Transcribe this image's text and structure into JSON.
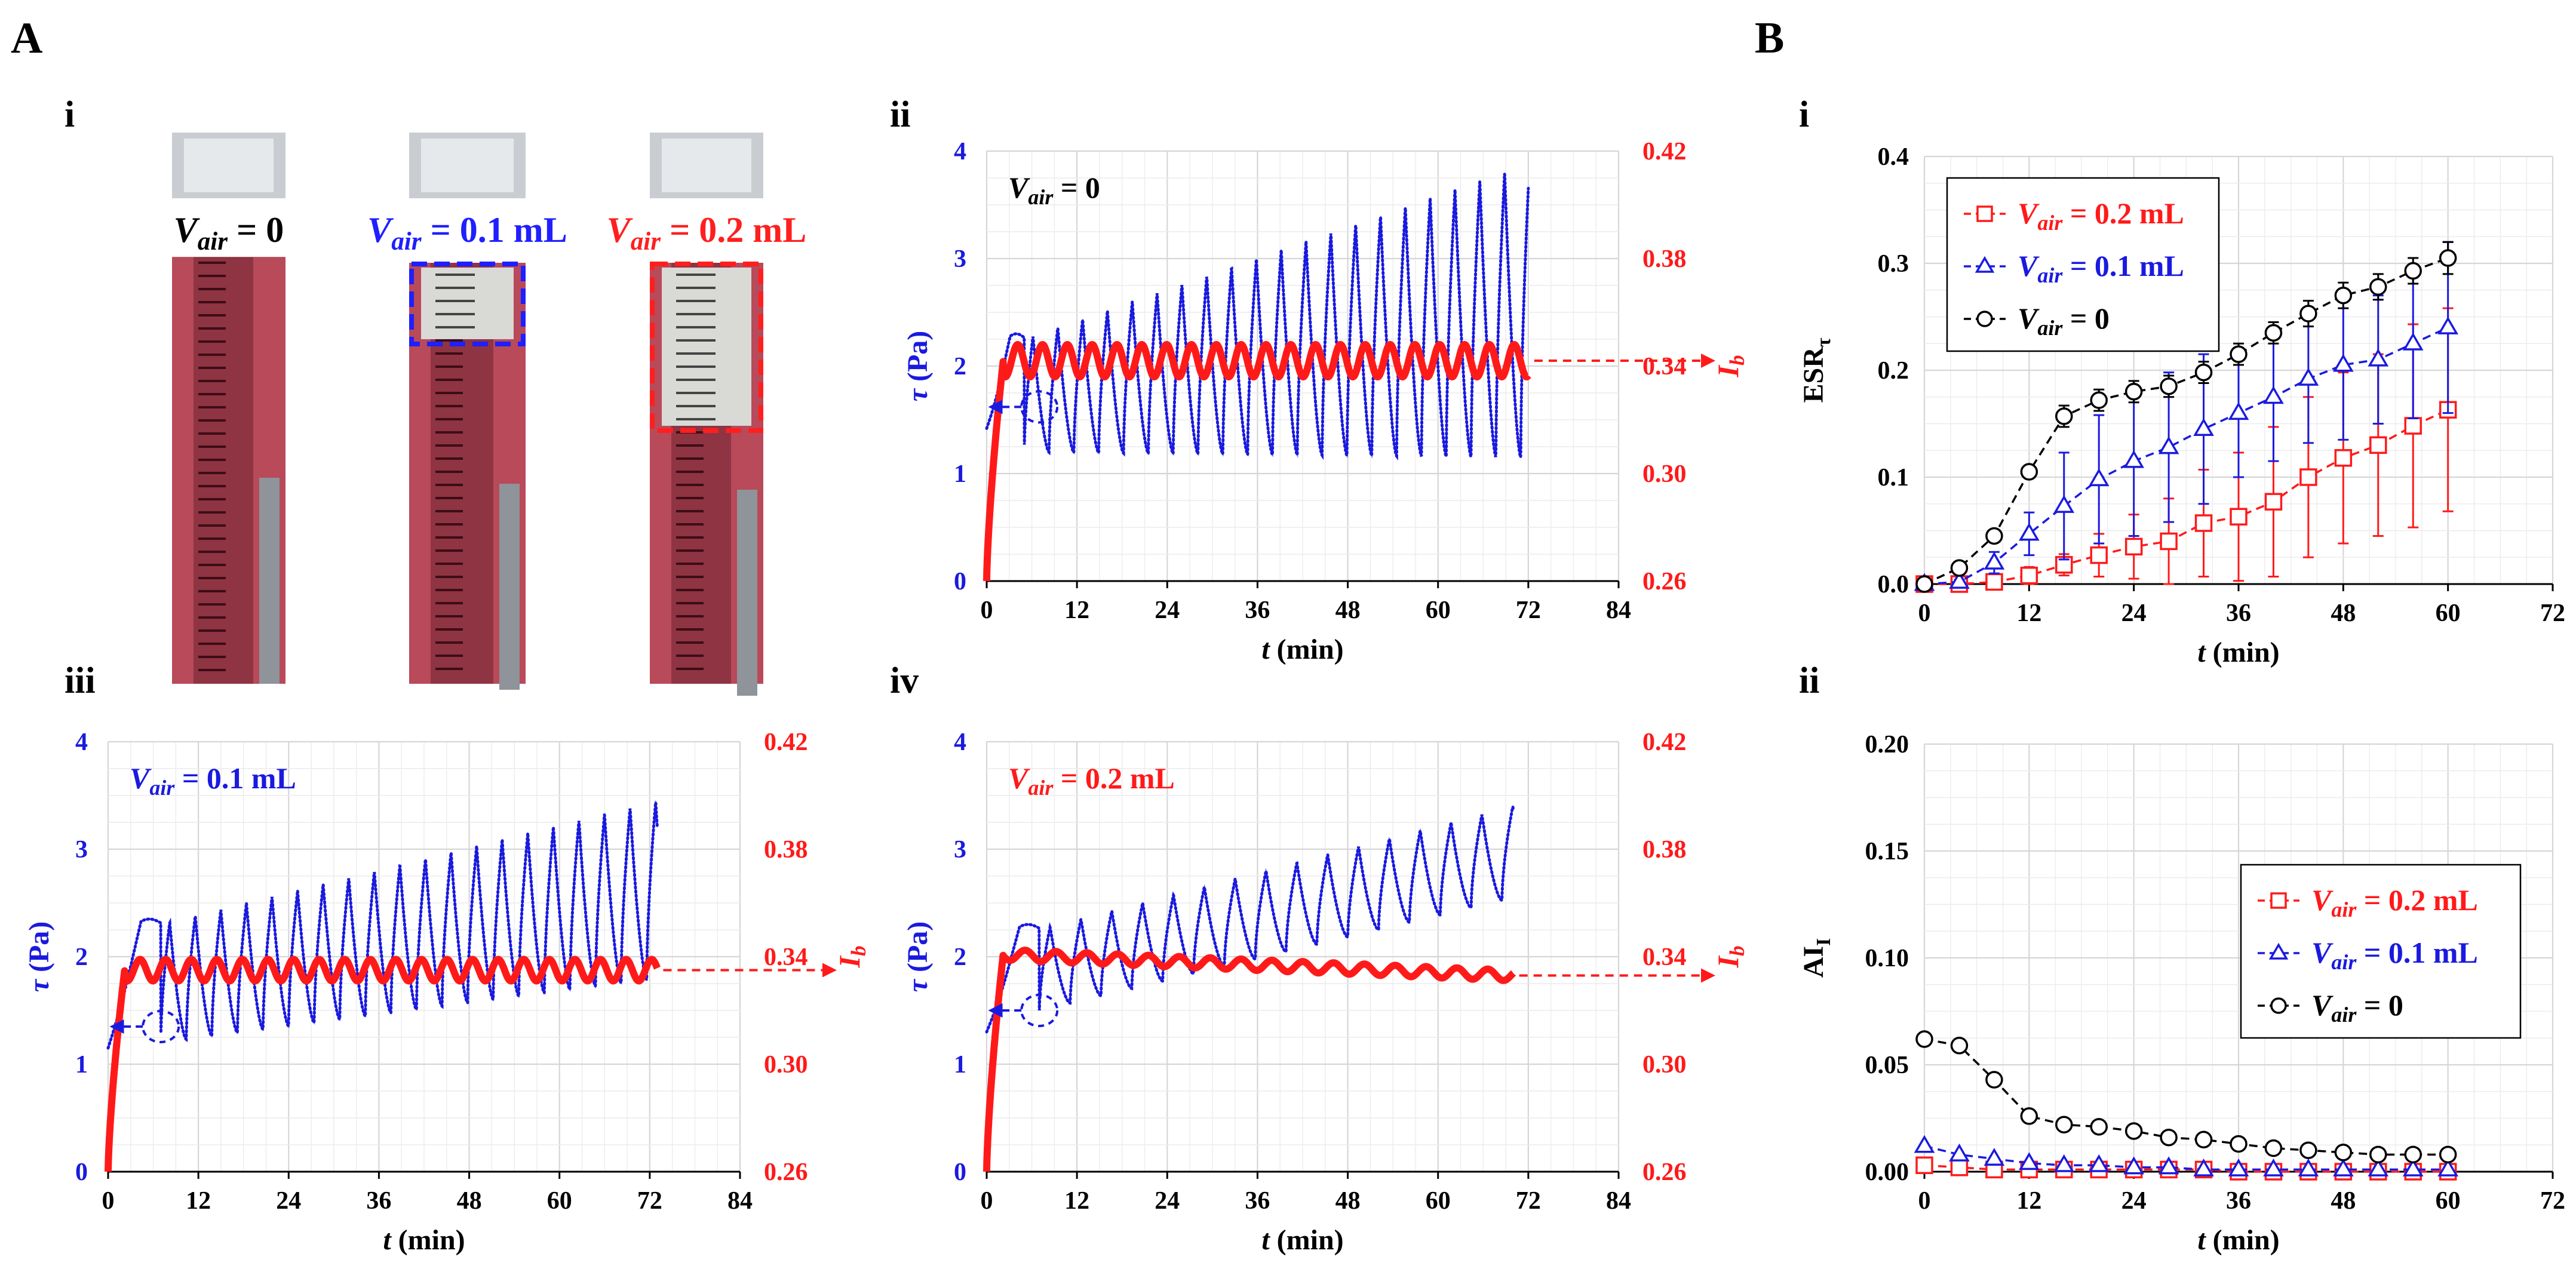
{
  "panel_labels": {
    "A": "A",
    "B": "B",
    "Ai": "i",
    "Aii": "ii",
    "Aiii": "iii",
    "Aiv": "iv",
    "Bi": "i",
    "Bii": "ii"
  },
  "photo": {
    "labels": [
      {
        "v": "V",
        "sub": "air",
        "rest": " = 0",
        "color": "#000000"
      },
      {
        "v": "V",
        "sub": "air",
        "rest": " = 0.1 mL",
        "color": "#1f1fff"
      },
      {
        "v": "V",
        "sub": "air",
        "rest": " = 0.2 mL",
        "color": "#ff1f1f"
      }
    ],
    "colors": {
      "blood": "#b84a5a",
      "dark": "#6e2230",
      "glass": "#c9cdd1",
      "metal": "#8e9499",
      "blue_box": "#1f1fff",
      "red_box": "#ff1f1f"
    }
  },
  "colors": {
    "tau": "#1a1adf",
    "ib": "#ff1a1a",
    "black": "#000000",
    "grid": "#d6d6d6",
    "gridminor": "#ececec"
  },
  "chart_data": [
    {
      "id": "Aii",
      "type": "line",
      "annotation": {
        "v": "V",
        "sub": "air",
        "rest": " = 0",
        "color": "#000000"
      },
      "xlabel": "t (min)",
      "ylabel_left": "τ (Pa)",
      "ylabel_right": "I_b",
      "xlim": [
        0,
        84
      ],
      "xticks": [
        "0",
        "12",
        "24",
        "36",
        "48",
        "60",
        "72",
        "84"
      ],
      "ylim_left": [
        0,
        4
      ],
      "yticks_left": [
        "0",
        "1",
        "2",
        "3",
        "4"
      ],
      "ylim_right": [
        0.26,
        0.42
      ],
      "yticks_right": [
        "0.26",
        "0.30",
        "0.34",
        "0.38",
        "0.42"
      ],
      "series": [
        {
          "name": "τ",
          "axis": "left",
          "color": "#1a1adf",
          "start": 1.42,
          "base_start": 1.2,
          "base_end": 1.15,
          "peak_start": 2.25,
          "peak_end": 3.88,
          "period": 3.3,
          "t_start": 5,
          "t_end": 72
        },
        {
          "name": "I_b",
          "axis": "right",
          "color": "#ff1a1a",
          "level": 0.342,
          "ripple": 0.006,
          "period": 3.3,
          "t_end": 72
        }
      ]
    },
    {
      "id": "Aiii",
      "type": "line",
      "annotation": {
        "v": "V",
        "sub": "air",
        "rest": " = 0.1 mL",
        "color": "#1a1adf"
      },
      "xlabel": "t (min)",
      "ylabel_left": "τ (Pa)",
      "ylabel_right": "I_b",
      "xlim": [
        0,
        84
      ],
      "xticks": [
        "0",
        "12",
        "24",
        "36",
        "48",
        "60",
        "72",
        "84"
      ],
      "ylim_left": [
        0,
        4
      ],
      "yticks_left": [
        "0",
        "1",
        "2",
        "3",
        "4"
      ],
      "ylim_right": [
        0.26,
        0.42
      ],
      "yticks_right": [
        "0.26",
        "0.30",
        "0.34",
        "0.38",
        "0.42"
      ],
      "series": [
        {
          "name": "τ",
          "axis": "left",
          "color": "#1a1adf",
          "start": 1.15,
          "base_start": 1.2,
          "base_end": 1.8,
          "peak_start": 2.3,
          "peak_end": 3.45,
          "period": 3.4,
          "t_start": 7,
          "t_end": 73
        },
        {
          "name": "I_b",
          "axis": "right",
          "color": "#ff1a1a",
          "level": 0.335,
          "ripple": 0.004,
          "period": 3.4,
          "t_end": 73
        }
      ]
    },
    {
      "id": "Aiv",
      "type": "line",
      "annotation": {
        "v": "V",
        "sub": "air",
        "rest": " = 0.2 mL",
        "color": "#ff1a1a"
      },
      "xlabel": "t (min)",
      "ylabel_left": "τ (Pa)",
      "ylabel_right": "I_b",
      "xlim": [
        0,
        84
      ],
      "xticks": [
        "0",
        "12",
        "24",
        "36",
        "48",
        "60",
        "72",
        "84"
      ],
      "ylim_left": [
        0,
        4
      ],
      "yticks_left": [
        "0",
        "1",
        "2",
        "3",
        "4"
      ],
      "ylim_right": [
        0.26,
        0.42
      ],
      "yticks_right": [
        "0.26",
        "0.30",
        "0.34",
        "0.38",
        "0.42"
      ],
      "series": [
        {
          "name": "τ",
          "axis": "left",
          "color": "#1a1adf",
          "start": 1.3,
          "base_start": 1.5,
          "base_end": 2.55,
          "peak_start": 2.25,
          "peak_end": 3.4,
          "period": 4.1,
          "t_start": 7,
          "t_end": 70
        },
        {
          "name": "I_b",
          "axis": "right",
          "color": "#ff1a1a",
          "level": 0.341,
          "ripple": 0.002,
          "period": 4.1,
          "t_end": 70,
          "drift_end": 0.333
        }
      ]
    },
    {
      "id": "Bi",
      "type": "line",
      "xlabel": "t (min)",
      "ylabel": "ESR_τ",
      "xlim": [
        0,
        72
      ],
      "xticks": [
        "0",
        "12",
        "24",
        "36",
        "48",
        "60",
        "72"
      ],
      "ylim": [
        0,
        0.4
      ],
      "yticks": [
        "0.0",
        "0.1",
        "0.2",
        "0.3",
        "0.4"
      ],
      "x": [
        0,
        4,
        8,
        12,
        16,
        20,
        24,
        28,
        32,
        36,
        40,
        44,
        48,
        52,
        56,
        60
      ],
      "series": [
        {
          "name": "V_air = 0.2 mL",
          "sub": "air",
          "rest": " = 0.2 mL",
          "color": "#ff1a1a",
          "marker": "square",
          "values": [
            0,
            0,
            0.002,
            0.008,
            0.018,
            0.027,
            0.035,
            0.04,
            0.057,
            0.063,
            0.077,
            0.1,
            0.118,
            0.13,
            0.148,
            0.163
          ],
          "errors": [
            0,
            0,
            0.001,
            0.008,
            0.01,
            0.02,
            0.03,
            0.04,
            0.05,
            0.06,
            0.07,
            0.075,
            0.08,
            0.085,
            0.095,
            0.095
          ]
        },
        {
          "name": "V_air = 0.1 mL",
          "sub": "air",
          "rest": " = 0.1 mL",
          "color": "#1a1adf",
          "marker": "triangle",
          "values": [
            0,
            0.002,
            0.02,
            0.047,
            0.073,
            0.098,
            0.115,
            0.128,
            0.145,
            0.16,
            0.175,
            0.192,
            0.205,
            0.21,
            0.225,
            0.24
          ],
          "errors": [
            0,
            0.002,
            0.01,
            0.02,
            0.05,
            0.06,
            0.07,
            0.07,
            0.07,
            0.06,
            0.06,
            0.06,
            0.07,
            0.06,
            0.07,
            0.08
          ]
        },
        {
          "name": "V_air = 0",
          "sub": "air",
          "rest": " = 0",
          "color": "#000000",
          "marker": "circle",
          "values": [
            0,
            0.015,
            0.045,
            0.105,
            0.157,
            0.172,
            0.18,
            0.185,
            0.198,
            0.215,
            0.235,
            0.253,
            0.27,
            0.278,
            0.293,
            0.305
          ],
          "errors": [
            0,
            0.003,
            0.004,
            0.005,
            0.01,
            0.01,
            0.01,
            0.01,
            0.01,
            0.01,
            0.01,
            0.012,
            0.012,
            0.012,
            0.012,
            0.015
          ]
        }
      ]
    },
    {
      "id": "Bii",
      "type": "line",
      "xlabel": "t (min)",
      "ylabel": "AI_I",
      "xlim": [
        0,
        72
      ],
      "xticks": [
        "0",
        "12",
        "24",
        "36",
        "48",
        "60",
        "72"
      ],
      "ylim": [
        0,
        0.2
      ],
      "yticks": [
        "0.00",
        "0.05",
        "0.10",
        "0.15",
        "0.20"
      ],
      "x": [
        0,
        4,
        8,
        12,
        16,
        20,
        24,
        28,
        32,
        36,
        40,
        44,
        48,
        52,
        56,
        60
      ],
      "series": [
        {
          "name": "V_air = 0.2 mL",
          "sub": "air",
          "rest": " = 0.2 mL",
          "color": "#ff1a1a",
          "marker": "square",
          "values": [
            0.003,
            0.002,
            0.001,
            0.001,
            0.001,
            0.001,
            0.001,
            0.001,
            0.001,
            0,
            0,
            0,
            0,
            0,
            0,
            0
          ],
          "errors": []
        },
        {
          "name": "V_air = 0.1 mL",
          "sub": "air",
          "rest": " = 0.1 mL",
          "color": "#1a1adf",
          "marker": "triangle",
          "values": [
            0.012,
            0.008,
            0.006,
            0.004,
            0.003,
            0.003,
            0.002,
            0.002,
            0.001,
            0.001,
            0.001,
            0.001,
            0.001,
            0.001,
            0.001,
            0.001
          ],
          "errors": []
        },
        {
          "name": "V_air = 0",
          "sub": "air",
          "rest": " = 0",
          "color": "#000000",
          "marker": "circle",
          "values": [
            0.062,
            0.059,
            0.043,
            0.026,
            0.022,
            0.021,
            0.019,
            0.016,
            0.015,
            0.013,
            0.011,
            0.01,
            0.009,
            0.008,
            0.008,
            0.008
          ],
          "errors": []
        }
      ]
    }
  ]
}
